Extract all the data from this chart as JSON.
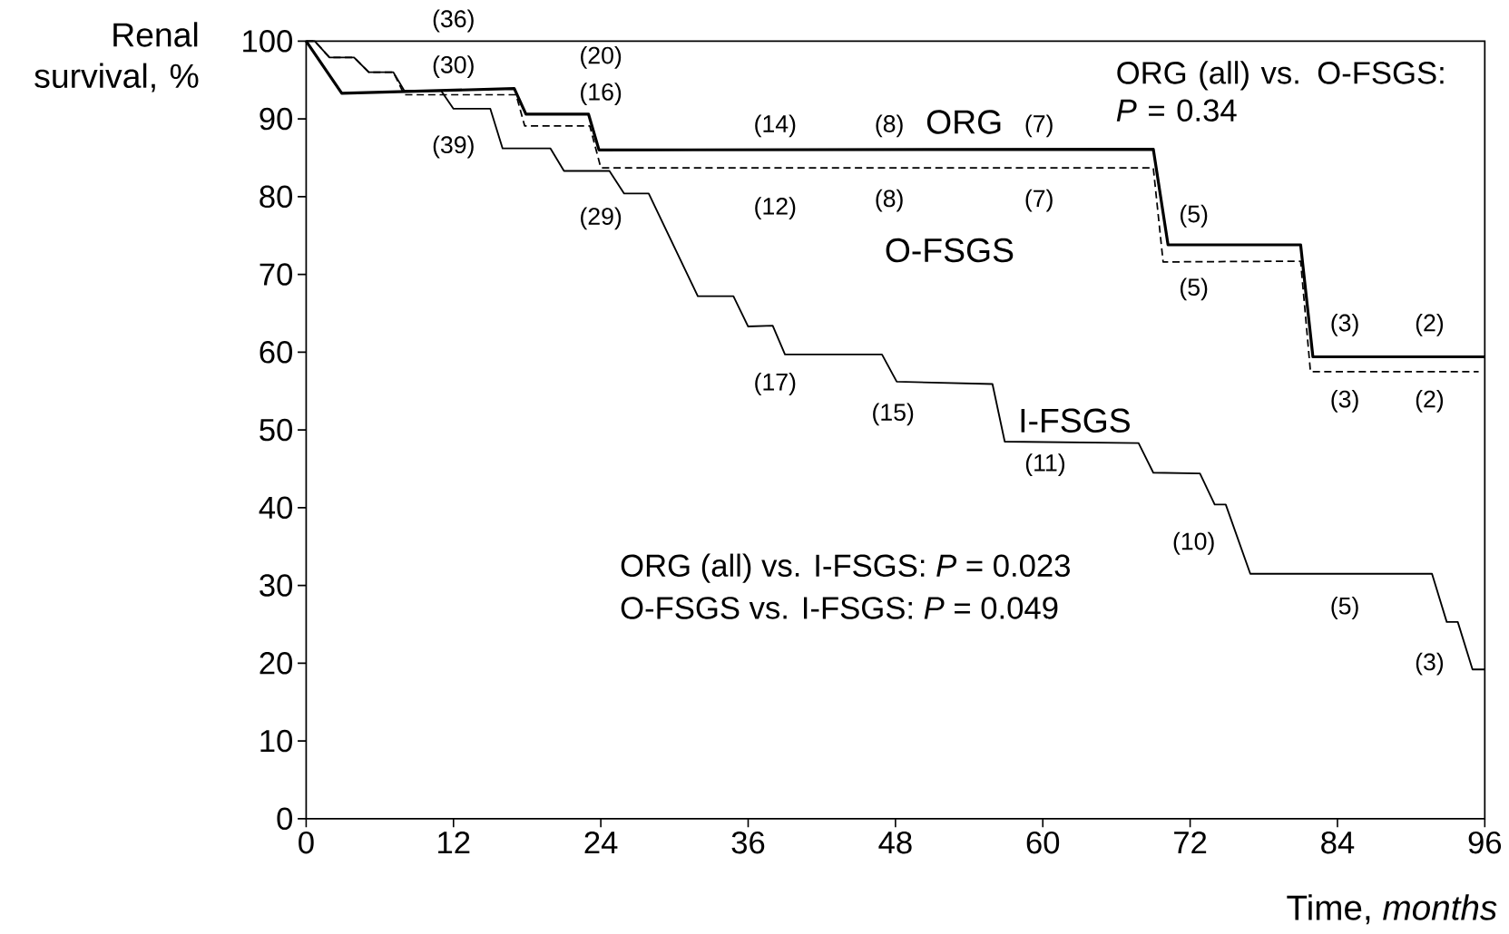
{
  "chart_data": {
    "type": "line",
    "ylabel": "Renal survival, %",
    "xlabel": "Time, *months*",
    "xlim": [
      0,
      96
    ],
    "xticks": [
      0,
      12,
      24,
      36,
      48,
      60,
      72,
      84,
      96
    ],
    "ylim": [
      0,
      100
    ],
    "yticks": [
      0,
      10,
      20,
      30,
      40,
      50,
      60,
      70,
      80,
      90,
      100
    ],
    "grid": false,
    "legend": false,
    "marker": "none",
    "series": [
      {
        "name": "ORG",
        "color": "#000000",
        "line_style": "solid",
        "x": [
          0,
          2.9,
          16.95,
          17.9,
          23.0,
          23.85,
          69.0,
          70.2,
          81.0,
          82.0,
          96
        ],
        "values": [
          100,
          93.3,
          93.9,
          90.6,
          90.6,
          86.0,
          86.1,
          73.8,
          73.8,
          59.4,
          59.4
        ]
      },
      {
        "name": "O-FSGS",
        "color": "#000000",
        "line_style": "dashed",
        "x": [
          0,
          0.7,
          1.9,
          3.9,
          5.1,
          7.1,
          8.0,
          17.1,
          17.8,
          23.1,
          24.0,
          69.0,
          69.8,
          81.0,
          81.8,
          95.5
        ],
        "values": [
          100,
          100,
          97.9,
          97.9,
          96.0,
          96.0,
          93.1,
          93.1,
          89.1,
          89.1,
          83.7,
          83.7,
          71.6,
          71.7,
          57.5,
          57.5
        ]
      },
      {
        "name": "I-FSGS",
        "color": "#000000",
        "line_style": "solid",
        "x": [
          0,
          0.7,
          1.9,
          3.9,
          5.1,
          7.1,
          8.0,
          11.0,
          12.0,
          15.0,
          16.0,
          19.9,
          21.0,
          24.7,
          25.9,
          27.9,
          31.9,
          34.8,
          36.0,
          38.0,
          39.0,
          46.9,
          48.1,
          55.9,
          56.9,
          67.8,
          69.0,
          72.8,
          74.0,
          74.9,
          76.9,
          91.7,
          92.9,
          93.8,
          95.0,
          96
        ],
        "values": [
          100,
          100,
          97.9,
          97.9,
          96.0,
          96.0,
          93.6,
          93.6,
          91.3,
          91.3,
          86.2,
          86.2,
          83.3,
          83.3,
          80.4,
          80.4,
          67.2,
          67.2,
          63.3,
          63.4,
          59.7,
          59.7,
          56.2,
          55.9,
          48.5,
          48.3,
          44.5,
          44.4,
          40.4,
          40.4,
          31.5,
          31.5,
          25.3,
          25.3,
          19.2,
          19.2
        ]
      }
    ],
    "annotations": [
      "ORG (all) vs. O-FSGS: *P* = 0.34",
      "ORG (all) vs. I-FSGS: *P* = 0.023",
      "O-FSGS vs. I-FSGS: *P* = 0.049",
      "(36)",
      "(30)",
      "(39)",
      "(20)",
      "(16)",
      "(29)",
      "(14)",
      "(12)",
      "(17)",
      "(8)",
      "(8)",
      "(15)",
      "(7)",
      "(7)",
      "(11)",
      "(5)",
      "(5)",
      "(10)",
      "(3)",
      "(3)",
      "(5)",
      "(2)",
      "(2)",
      "(3)"
    ]
  }
}
